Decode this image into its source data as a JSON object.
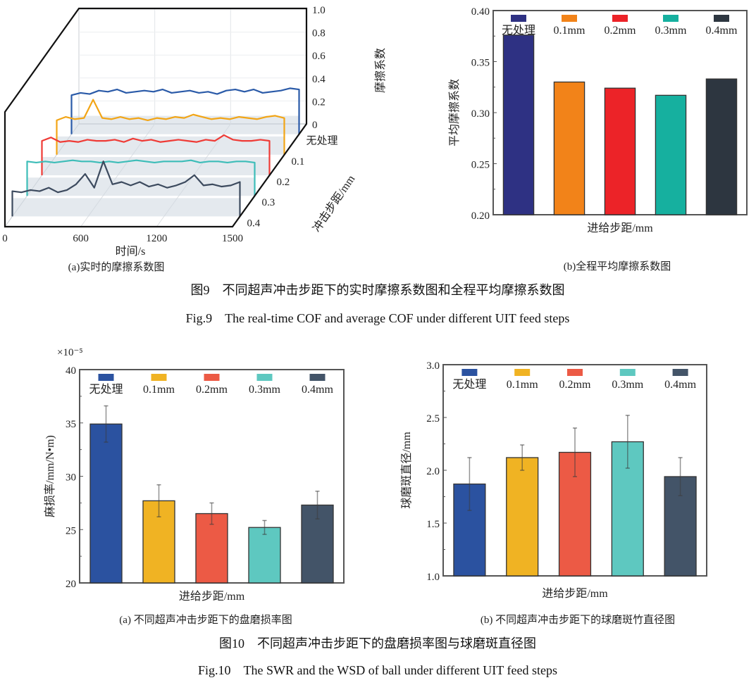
{
  "fig9": {
    "caption_cn": "图9　不同超声冲击步距下的实时摩擦系数图和全程平均摩擦系数图",
    "caption_en": "Fig.9　The real-time COF and average COF under different UIT feed steps"
  },
  "fig10": {
    "caption_cn": "图10　不同超声冲击步距下的盘磨损率图与球磨斑直径图",
    "caption_en": "Fig.10　The SWR and the WSD of ball under different UIT feed steps"
  },
  "chart_data": [
    {
      "id": "fig9a",
      "type": "line",
      "subtype": "3d-waterfall",
      "caption": "(a)实时的摩擦系数图",
      "xlabel": "时间/s",
      "ylabel": "摩擦系数",
      "zlabel": "冲击步距/mm",
      "xticks": [
        "0",
        "600",
        "1200",
        "1500"
      ],
      "yticks": [
        "0",
        "0.2",
        "0.4",
        "0.6",
        "0.8",
        "1.0"
      ],
      "ylim": [
        0,
        1.0
      ],
      "xlim": [
        0,
        1500
      ],
      "x": [
        0,
        60,
        120,
        180,
        240,
        300,
        360,
        420,
        480,
        540,
        600,
        660,
        720,
        780,
        840,
        900,
        960,
        1020,
        1080,
        1140,
        1200,
        1260,
        1320,
        1380,
        1440,
        1500
      ],
      "series": [
        {
          "name": "无处理",
          "color": "#2a5aa8",
          "values": [
            0.34,
            0.36,
            0.35,
            0.38,
            0.37,
            0.39,
            0.36,
            0.37,
            0.38,
            0.37,
            0.39,
            0.36,
            0.37,
            0.38,
            0.36,
            0.37,
            0.35,
            0.38,
            0.39,
            0.37,
            0.39,
            0.36,
            0.37,
            0.38,
            0.4,
            0.39
          ]
        },
        {
          "name": "0.1",
          "color": "#f2a516",
          "values": [
            0.3,
            0.33,
            0.31,
            0.32,
            0.48,
            0.32,
            0.31,
            0.33,
            0.31,
            0.32,
            0.3,
            0.32,
            0.31,
            0.33,
            0.32,
            0.35,
            0.33,
            0.31,
            0.32,
            0.31,
            0.33,
            0.32,
            0.31,
            0.33,
            0.34,
            0.32
          ]
        },
        {
          "name": "0.2",
          "color": "#ef3b36",
          "values": [
            0.3,
            0.33,
            0.29,
            0.3,
            0.29,
            0.31,
            0.3,
            0.3,
            0.31,
            0.29,
            0.32,
            0.3,
            0.31,
            0.29,
            0.3,
            0.31,
            0.3,
            0.29,
            0.31,
            0.3,
            0.35,
            0.31,
            0.3,
            0.3,
            0.31,
            0.3
          ]
        },
        {
          "name": "0.3",
          "color": "#3dbdb8",
          "values": [
            0.3,
            0.29,
            0.3,
            0.29,
            0.3,
            0.31,
            0.3,
            0.3,
            0.29,
            0.3,
            0.29,
            0.3,
            0.31,
            0.3,
            0.29,
            0.3,
            0.3,
            0.3,
            0.31,
            0.29,
            0.3,
            0.3,
            0.29,
            0.3,
            0.3,
            0.29
          ]
        },
        {
          "name": "0.4",
          "color": "#3c4a5e",
          "values": [
            0.22,
            0.21,
            0.23,
            0.22,
            0.25,
            0.21,
            0.23,
            0.28,
            0.37,
            0.25,
            0.48,
            0.28,
            0.3,
            0.27,
            0.3,
            0.26,
            0.28,
            0.25,
            0.27,
            0.3,
            0.36,
            0.27,
            0.28,
            0.26,
            0.27,
            0.3
          ]
        }
      ]
    },
    {
      "id": "fig9b",
      "type": "bar",
      "caption": "(b)全程平均摩擦系数图",
      "xlabel": "进给步距/mm",
      "ylabel": "平均摩擦系数",
      "categories": [
        "无处理",
        "0.1mm",
        "0.2mm",
        "0.3mm",
        "0.4mm"
      ],
      "values": [
        0.376,
        0.33,
        0.324,
        0.317,
        0.333
      ],
      "colors": [
        "#2e3183",
        "#f28319",
        "#ec2328",
        "#16b09f",
        "#2d3640"
      ],
      "ylim": [
        0.2,
        0.4
      ],
      "yticks": [
        "0.20",
        "0.25",
        "0.30",
        "0.35",
        "0.40"
      ],
      "legend": "top"
    },
    {
      "id": "fig10a",
      "type": "bar",
      "caption": "(a) 不同超声冲击步距下的盘磨损率图",
      "xlabel": "进给步距/mm",
      "ylabel": "麻损率/mm/N•m)",
      "yunit": "×10⁻⁵",
      "categories": [
        "无处理",
        "0.1mm",
        "0.2mm",
        "0.3mm",
        "0.4mm"
      ],
      "values": [
        34.9,
        27.7,
        26.5,
        25.2,
        27.3
      ],
      "error": [
        1.7,
        1.5,
        1.0,
        0.65,
        1.3
      ],
      "colors": [
        "#2b52a0",
        "#f0b323",
        "#ec5a45",
        "#5ec8c0",
        "#435468"
      ],
      "ylim": [
        20,
        40
      ],
      "yticks": [
        "20",
        "25",
        "30",
        "35",
        "40"
      ],
      "legend": "top"
    },
    {
      "id": "fig10b",
      "type": "bar",
      "caption": "(b) 不同超声冲击步距下的球磨斑竹直径图",
      "xlabel": "进给步距/mm",
      "ylabel": "球磨斑直径/mm",
      "categories": [
        "无处理",
        "0.1mm",
        "0.2mm",
        "0.3mm",
        "0.4mm"
      ],
      "values": [
        1.87,
        2.12,
        2.17,
        2.27,
        1.94
      ],
      "error": [
        0.25,
        0.12,
        0.23,
        0.25,
        0.18
      ],
      "colors": [
        "#2b52a0",
        "#f0b323",
        "#ec5a45",
        "#5ec8c0",
        "#435468"
      ],
      "ylim": [
        1.0,
        3.0
      ],
      "yticks": [
        "1.0",
        "1.5",
        "2.0",
        "2.5",
        "3.0"
      ],
      "legend": "top"
    }
  ]
}
